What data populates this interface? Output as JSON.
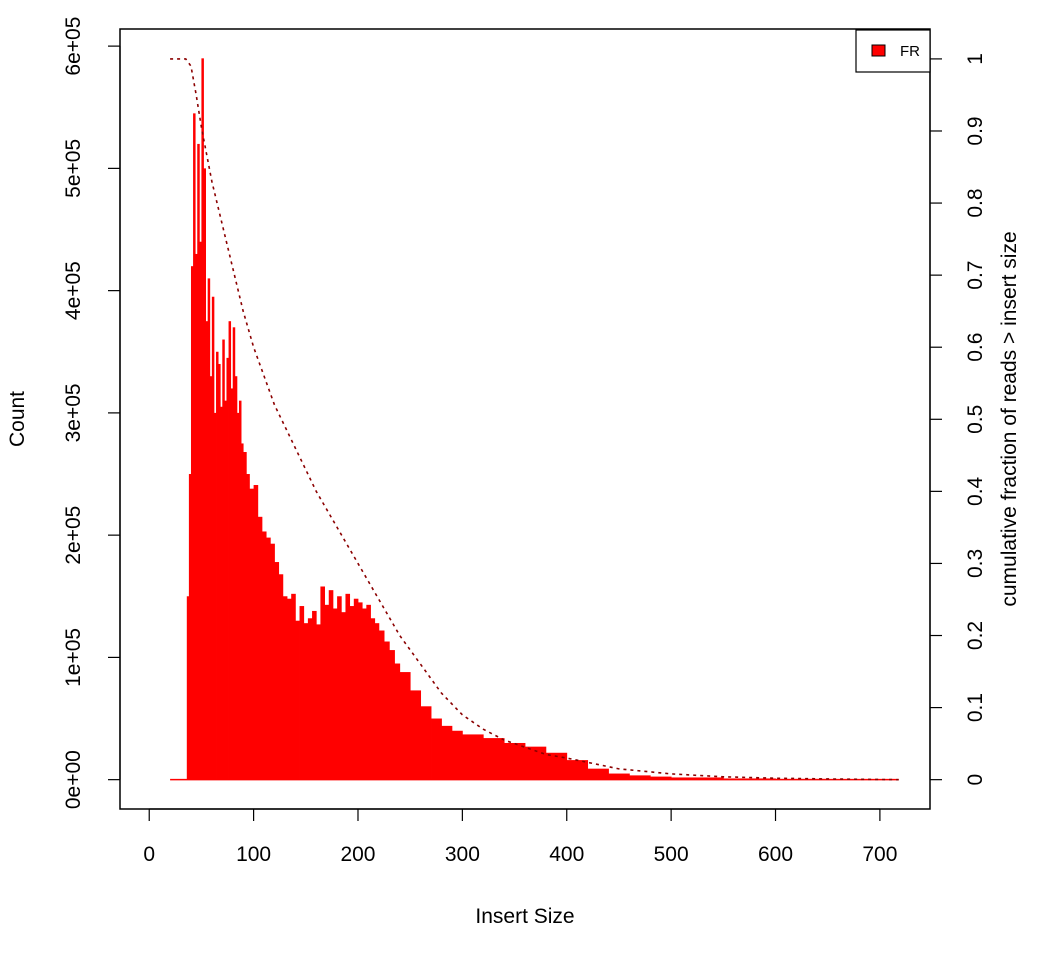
{
  "chart_data": {
    "type": "bar",
    "xlabel": "Insert Size",
    "ylabel": "Count",
    "y2label": "cumulative fraction of reads > insert size",
    "xlim": [
      -28,
      748
    ],
    "ylim": [
      -24000,
      614000
    ],
    "y2lim": [
      -0.0407,
      1.0415
    ],
    "x_ticks": [
      0,
      100,
      200,
      300,
      400,
      500,
      600,
      700
    ],
    "y_ticks": [
      0,
      100000,
      200000,
      300000,
      400000,
      500000,
      600000
    ],
    "y_tick_labels": [
      "0e+00",
      "1e+05",
      "2e+05",
      "3e+05",
      "4e+05",
      "5e+05",
      "6e+05"
    ],
    "y2_ticks": [
      0,
      0.1,
      0.2,
      0.3,
      0.4,
      0.5,
      0.6,
      0.7,
      0.8,
      0.9,
      1
    ],
    "y2_tick_labels": [
      "0",
      "0.1",
      "0.2",
      "0.3",
      "0.4",
      "0.5",
      "0.6",
      "0.7",
      "0.8",
      "0.9",
      "1"
    ],
    "legend": {
      "position": "top-right",
      "entries": [
        {
          "label": "FR",
          "color": "#ff0000"
        }
      ]
    },
    "series": [
      {
        "name": "FR",
        "kind": "histogram",
        "color": "#ff0000",
        "x": [
          20,
          34,
          36,
          38,
          40,
          42,
          44,
          46,
          48,
          50,
          52,
          54,
          56,
          58,
          60,
          62,
          64,
          66,
          68,
          70,
          72,
          74,
          76,
          78,
          80,
          82,
          84,
          86,
          88,
          90,
          93,
          96,
          100,
          104,
          108,
          112,
          116,
          120,
          124,
          128,
          132,
          136,
          140,
          144,
          148,
          152,
          156,
          160,
          164,
          168,
          172,
          176,
          180,
          184,
          188,
          192,
          196,
          200,
          204,
          208,
          212,
          216,
          220,
          225,
          230,
          235,
          240,
          250,
          260,
          270,
          280,
          290,
          300,
          320,
          340,
          360,
          380,
          400,
          420,
          440,
          460,
          480,
          500,
          550,
          600,
          650,
          700,
          718
        ],
        "values": [
          0,
          0,
          150000,
          250000,
          420000,
          545000,
          430000,
          520000,
          440000,
          590000,
          500000,
          375000,
          410000,
          330000,
          395000,
          300000,
          350000,
          340000,
          305000,
          360000,
          310000,
          345000,
          375000,
          320000,
          370000,
          330000,
          300000,
          310000,
          275000,
          268000,
          250000,
          238000,
          241000,
          215000,
          203000,
          198000,
          193000,
          178000,
          168000,
          150000,
          148000,
          152000,
          130000,
          142000,
          128000,
          132000,
          138000,
          127000,
          158000,
          143000,
          155000,
          140000,
          150000,
          137000,
          152000,
          142000,
          148000,
          145000,
          140000,
          143000,
          132000,
          128000,
          122000,
          113000,
          106000,
          95000,
          88000,
          73000,
          60000,
          50000,
          44000,
          40000,
          37000,
          34000,
          30000,
          27000,
          22000,
          16000,
          9000,
          5000,
          3500,
          2500,
          1800,
          1000,
          600,
          300,
          100,
          0
        ]
      },
      {
        "name": "cumulative",
        "kind": "line",
        "style": "dotted",
        "color": "#8b0000",
        "axis": "right",
        "x": [
          20,
          35,
          40,
          45,
          50,
          60,
          70,
          80,
          90,
          100,
          120,
          140,
          160,
          180,
          200,
          220,
          240,
          260,
          280,
          300,
          320,
          340,
          360,
          380,
          400,
          450,
          500,
          550,
          600,
          650,
          718
        ],
        "values": [
          1.0,
          1.0,
          0.99,
          0.95,
          0.905,
          0.83,
          0.77,
          0.71,
          0.65,
          0.6,
          0.52,
          0.46,
          0.4,
          0.35,
          0.3,
          0.25,
          0.2,
          0.16,
          0.12,
          0.09,
          0.07,
          0.055,
          0.045,
          0.035,
          0.03,
          0.015,
          0.008,
          0.004,
          0.002,
          0.001,
          0
        ]
      }
    ]
  }
}
